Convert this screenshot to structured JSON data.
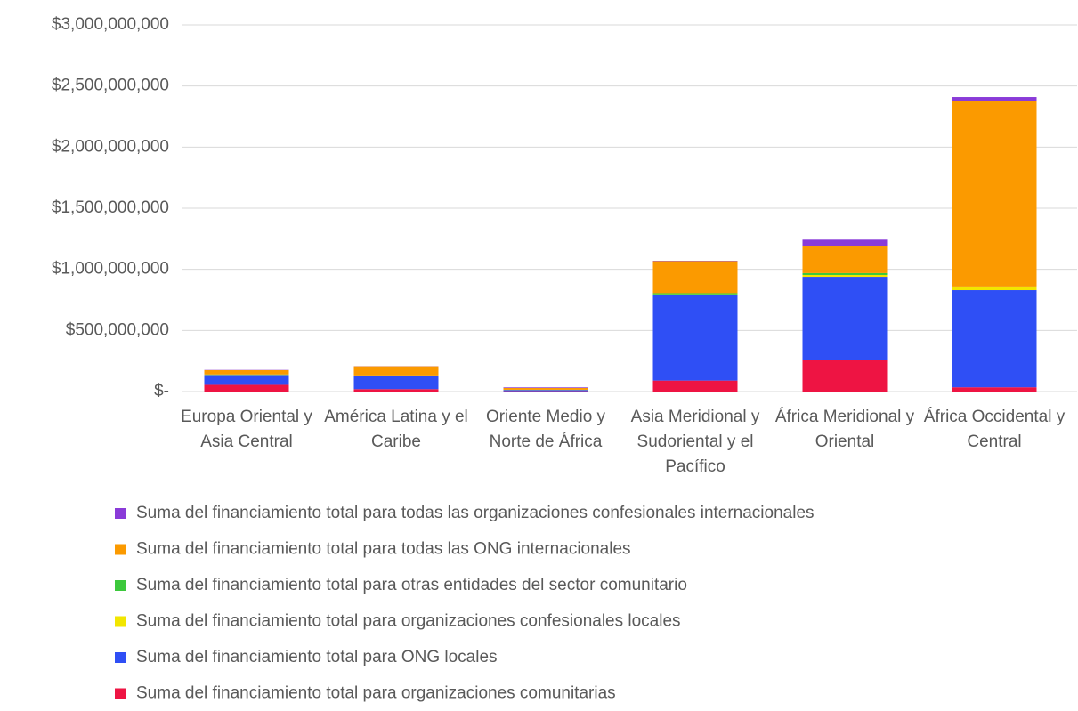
{
  "chart_data": {
    "type": "stacked_bar",
    "categories": [
      "Europa Oriental y Asia Central",
      "América Latina y el Caribe",
      "Oriente Medio y Norte de África",
      "Asia Meridional y Sudoriental y el Pacífico",
      "África Meridional y Oriental",
      "África Occidental y Central"
    ],
    "series": [
      {
        "name": "Suma del financiamiento total para organizaciones comunitarias",
        "color": "#ee1443",
        "values": [
          55000000,
          20000000,
          3000000,
          90000000,
          262000000,
          35000000
        ]
      },
      {
        "name": "Suma del financiamiento total para ONG locales",
        "color": "#2f4ff5",
        "values": [
          80000000,
          110000000,
          10000000,
          700000000,
          677000000,
          795000000
        ]
      },
      {
        "name": "Suma del financiamiento total para organizaciones confesionales locales",
        "color": "#f2e600",
        "values": [
          2000000,
          1000000,
          1000000,
          5000000,
          15000000,
          25000000
        ]
      },
      {
        "name": "Suma del financiamiento total para otras entidades del sector comunitario",
        "color": "#3cc83c",
        "values": [
          3000000,
          1000000,
          1000000,
          10000000,
          15000000,
          5000000
        ]
      },
      {
        "name": "Suma del financiamiento total para todas las ONG internacionales",
        "color": "#fb9a00",
        "values": [
          35000000,
          75000000,
          15000000,
          262000000,
          224000000,
          1521000000
        ]
      },
      {
        "name": "Suma del financiamiento total para todas las organizaciones confesionales internacionales",
        "color": "#8a3bd8",
        "values": [
          2000000,
          1000000,
          5000000,
          3000000,
          50000000,
          29000000
        ]
      }
    ],
    "ylim": [
      0,
      3000000000
    ],
    "yticks": [
      {
        "value": 0,
        "label": "$-"
      },
      {
        "value": 500000000,
        "label": "$500,000,000"
      },
      {
        "value": 1000000000,
        "label": "$1,000,000,000"
      },
      {
        "value": 1500000000,
        "label": "$1,500,000,000"
      },
      {
        "value": 2000000000,
        "label": "$2,000,000,000"
      },
      {
        "value": 2500000000,
        "label": "$2,500,000,000"
      },
      {
        "value": 3000000000,
        "label": "$3,000,000,000"
      }
    ],
    "grid": true
  }
}
